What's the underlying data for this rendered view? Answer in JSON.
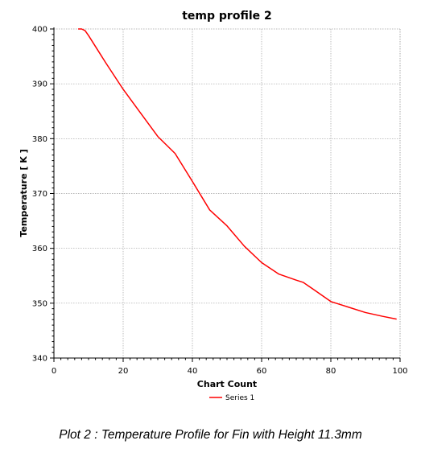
{
  "caption": "Plot 2 : Temperature Profile for Fin with Height 11.3mm",
  "chart_data": {
    "type": "line",
    "title": "temp profile 2",
    "xlabel": "Chart Count",
    "ylabel": "Temperature [ K ]",
    "xlim": [
      0,
      100
    ],
    "ylim": [
      340,
      400
    ],
    "xticks": [
      0,
      20,
      40,
      60,
      80,
      100
    ],
    "yticks": [
      340,
      350,
      360,
      370,
      380,
      390,
      400
    ],
    "grid": true,
    "legend": "bottom-center",
    "series": [
      {
        "name": "Series 1",
        "color": "#ff0000",
        "x": [
          7,
          8,
          9,
          10,
          15,
          20,
          25,
          30,
          35,
          40,
          45,
          50,
          55,
          60,
          65,
          70,
          72,
          75,
          80,
          85,
          90,
          95,
          99
        ],
        "y": [
          400,
          400,
          399.7,
          398.8,
          393.8,
          389.0,
          384.7,
          380.4,
          377.3,
          372.2,
          367.0,
          364.1,
          360.4,
          357.4,
          355.3,
          354.2,
          353.8,
          352.5,
          350.3,
          349.3,
          348.3,
          347.6,
          347.1
        ]
      }
    ]
  }
}
